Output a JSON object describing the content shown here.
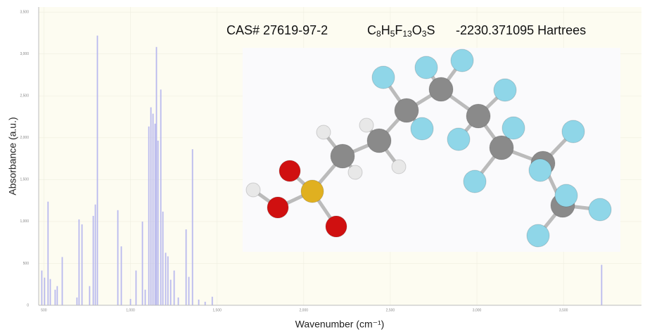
{
  "chart_data": {
    "type": "bar",
    "x_label": "Wavenumber (cm⁻¹)",
    "y_label": "Absorbance (a.u.)",
    "annotations": {
      "cas": "CAS# 27619-97-2",
      "formula": [
        "C",
        "8",
        "H",
        "5",
        "F",
        "13",
        "O",
        "3",
        "S"
      ],
      "energy": "-2230.371095 Hartrees"
    },
    "x": [
      488,
      504,
      524,
      537,
      565,
      577,
      606,
      691,
      703,
      720,
      764,
      785,
      797,
      809,
      927,
      947,
      1000,
      1032,
      1069,
      1085,
      1106,
      1118,
      1130,
      1142,
      1150,
      1159,
      1175,
      1187,
      1203,
      1216,
      1232,
      1252,
      1276,
      1321,
      1337,
      1358,
      1394,
      1431,
      1472,
      3720
    ],
    "values": [
      415,
      330,
      1237,
      313,
      186,
      229,
      576,
      93,
      1025,
      966,
      229,
      1067,
      1203,
      3219,
      1135,
      703,
      76,
      415,
      999,
      186,
      2134,
      2363,
      2287,
      2168,
      3083,
      1965,
      2575,
      1118,
      627,
      584,
      305,
      415,
      93,
      906,
      339,
      1863,
      68,
      42,
      102,
      483
    ],
    "color": "#b9b9ee",
    "xlim": [
      470,
      3950
    ],
    "ylim": [
      0,
      3560
    ],
    "xticks": [
      500,
      {
        "value": 1000,
        "label": "1,000"
      },
      {
        "value": 1500,
        "label": "1,500"
      },
      {
        "value": 2000,
        "label": "2,000"
      },
      {
        "value": 2500,
        "label": "2,500"
      },
      {
        "value": 3000,
        "label": "3,000"
      },
      {
        "value": 3500,
        "label": "3,500"
      }
    ],
    "yticks": [
      0,
      500,
      {
        "value": 1000,
        "label": "1,000"
      },
      {
        "value": 1500,
        "label": "1,500"
      },
      {
        "value": 2000,
        "label": "2,000"
      },
      {
        "value": 2500,
        "label": "2,500"
      },
      {
        "value": 3000,
        "label": "3,000"
      },
      {
        "value": 3500,
        "label": "3,500"
      }
    ],
    "grid": true
  }
}
